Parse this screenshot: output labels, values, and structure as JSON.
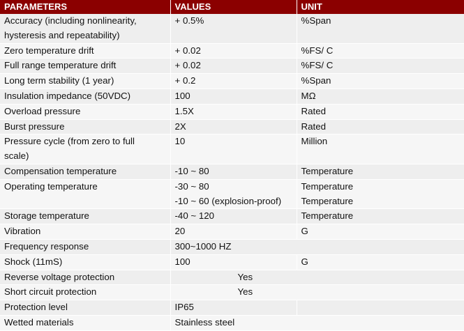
{
  "table": {
    "headers": [
      "PARAMETERS",
      "VALUES",
      "UNIT"
    ],
    "rows": [
      {
        "param": "Accuracy (including nonlinearity, hysteresis and repeatability)",
        "param_lines": [
          "Accuracy (including nonlinearity,",
          "hysteresis and repeatability)"
        ],
        "value": "+ 0.5%",
        "unit": "%Span"
      },
      {
        "param": "Zero temperature drift",
        "value": "+ 0.02",
        "unit": "%FS/ C"
      },
      {
        "param": "Full range temperature drift",
        "value": "+ 0.02",
        "unit": "%FS/ C"
      },
      {
        "param": "Long term stability (1 year)",
        "value": "+ 0.2",
        "unit": "%Span"
      },
      {
        "param": "Insulation impedance (50VDC)",
        "value": "100",
        "unit": "MΩ"
      },
      {
        "param": "Overload pressure",
        "value": "1.5X",
        "unit": "Rated"
      },
      {
        "param": "Burst pressure",
        "value": "2X",
        "unit": "Rated"
      },
      {
        "param": "Pressure cycle (from zero to full scale)",
        "param_lines": [
          "Pressure cycle (from zero to full",
          "scale)"
        ],
        "value": "10",
        "unit": "Million"
      },
      {
        "param": "Compensation temperature",
        "value": "-10 ~ 80",
        "unit": "Temperature"
      },
      {
        "param": "Operating temperature",
        "value_lines": [
          "-30 ~ 80",
          "-10 ~ 60 (explosion-proof)"
        ],
        "unit_lines": [
          "Temperature",
          "Temperature"
        ]
      },
      {
        "param": "Storage temperature",
        "value": "-40 ~ 120",
        "unit": "Temperature"
      },
      {
        "param": "Vibration",
        "value": "20",
        "unit": "G"
      },
      {
        "param": "Frequency response",
        "value": "300~1000 HZ"
      },
      {
        "param": "Shock (11mS)",
        "value": "100",
        "unit": "G"
      },
      {
        "param": "Reverse voltage protection",
        "value": "Yes"
      },
      {
        "param": "Short circuit protection",
        "value": "Yes"
      },
      {
        "param": "Protection level",
        "value": "IP65",
        "unit": ""
      },
      {
        "param": "Wetted materials",
        "value": "Stainless steel"
      }
    ]
  }
}
